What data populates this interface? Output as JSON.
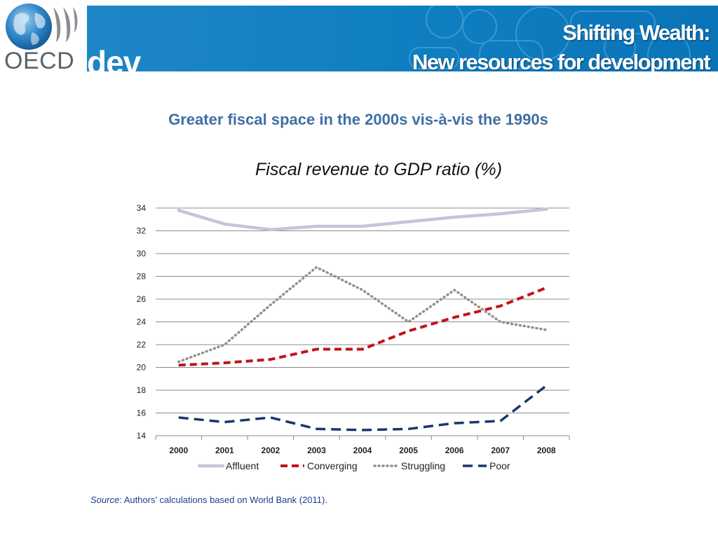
{
  "header": {
    "logo_text": "OECD",
    "dev_text": "dev",
    "title_line1": "Shifting Wealth:",
    "title_line2": "New resources for development"
  },
  "subtitle": "Greater fiscal space in the 2000s vis-à-vis the 1990s",
  "chart_title": "Fiscal revenue to GDP ratio (%)",
  "source": {
    "label": "Source",
    "text": ": Authors’ calculations based on World Bank (2011)."
  },
  "colors": {
    "banner": "#0f7fc2",
    "affluent": "#c8c3dc",
    "converging": "#c0141b",
    "struggling": "#8e8e8e",
    "poor": "#17386b"
  },
  "chart_data": {
    "type": "line",
    "title": "Fiscal revenue to GDP ratio (%)",
    "xlabel": "",
    "ylabel": "",
    "ylim": [
      14,
      34
    ],
    "yticks": [
      14,
      16,
      18,
      20,
      22,
      24,
      26,
      28,
      30,
      32,
      34
    ],
    "categories": [
      "2000",
      "2001",
      "2002",
      "2003",
      "2004",
      "2005",
      "2006",
      "2007",
      "2008"
    ],
    "grid": true,
    "legend": "bottom",
    "series": [
      {
        "name": "Affluent",
        "style": "solid",
        "values": [
          33.8,
          32.6,
          32.1,
          32.4,
          32.4,
          32.8,
          33.2,
          33.5,
          33.9
        ]
      },
      {
        "name": "Converging",
        "style": "dashed",
        "values": [
          20.2,
          20.4,
          20.7,
          21.6,
          21.6,
          23.2,
          24.4,
          25.4,
          27.0
        ]
      },
      {
        "name": "Struggling",
        "style": "dotted",
        "values": [
          20.5,
          22.0,
          25.5,
          28.8,
          26.8,
          24.0,
          26.8,
          24.0,
          23.3
        ]
      },
      {
        "name": "Poor",
        "style": "longdash",
        "values": [
          15.6,
          15.2,
          15.6,
          14.6,
          14.5,
          14.6,
          15.1,
          15.3,
          18.4
        ]
      }
    ]
  }
}
